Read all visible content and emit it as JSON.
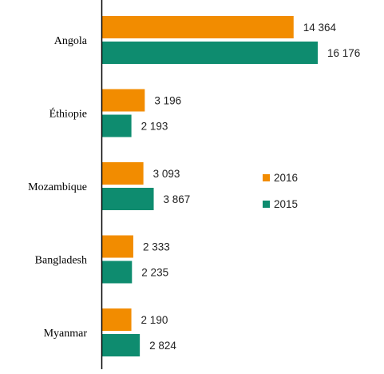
{
  "colors": {
    "series_2016": "#F28C00",
    "series_2015": "#0E8C6F",
    "axis": "#000000"
  },
  "chart_data": {
    "type": "bar",
    "orientation": "horizontal",
    "categories": [
      "Angola",
      "Éthiopie",
      "Mozambique",
      "Bangladesh",
      "Myanmar"
    ],
    "series": [
      {
        "name": "2016",
        "values": [
          14364,
          3196,
          3093,
          2333,
          2190
        ],
        "labels": [
          "14 364",
          "3 196",
          "3 093",
          "2 333",
          "2 190"
        ]
      },
      {
        "name": "2015",
        "values": [
          16176,
          2193,
          3867,
          2235,
          2824
        ],
        "labels": [
          "16 176",
          "2 193",
          "3 867",
          "2 235",
          "2 824"
        ]
      }
    ],
    "title": "",
    "xlabel": "",
    "ylabel": "",
    "xlim": [
      0,
      17500
    ],
    "grid": false,
    "legend": "right"
  }
}
